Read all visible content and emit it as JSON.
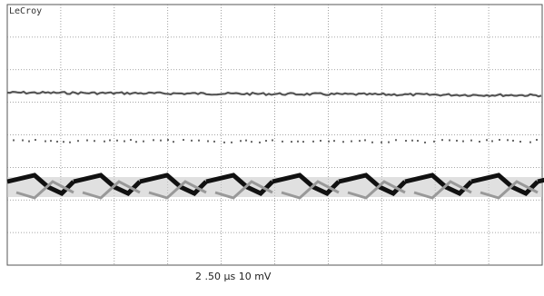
{
  "screen": {
    "brand": "LeCroy"
  },
  "footer": {
    "trace_2": "2 .50 µs 10 mV"
  }
}
